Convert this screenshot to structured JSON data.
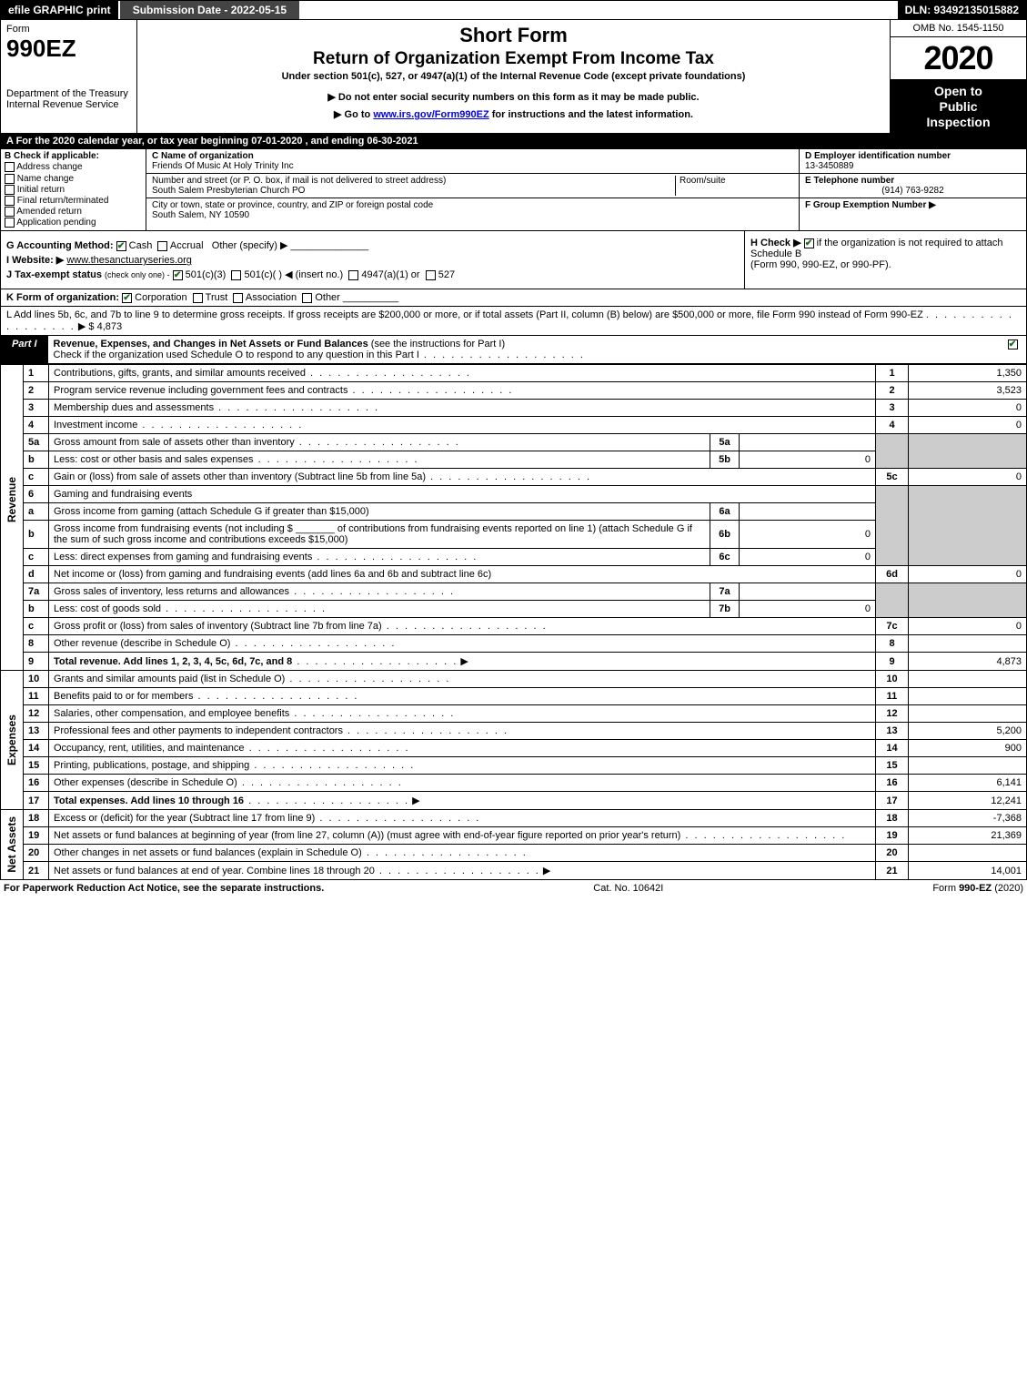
{
  "topbar": {
    "efile": "efile GRAPHIC print",
    "subdate": "Submission Date - 2022-05-15",
    "dln": "DLN: 93492135015882"
  },
  "header": {
    "form_word": "Form",
    "form_num": "990EZ",
    "dept1": "Department of the Treasury",
    "dept2": "Internal Revenue Service",
    "title": "Short Form",
    "subtitle": "Return of Organization Exempt From Income Tax",
    "section": "Under section 501(c), 527, or 4947(a)(1) of the Internal Revenue Code (except private foundations)",
    "warn": "▶ Do not enter social security numbers on this form as it may be made public.",
    "goto_pre": "▶ Go to ",
    "goto_link": "www.irs.gov/Form990EZ",
    "goto_post": " for instructions and the latest information.",
    "omb": "OMB No. 1545-1150",
    "year": "2020",
    "inspection1": "Open to",
    "inspection2": "Public",
    "inspection3": "Inspection"
  },
  "a_row": "A For the 2020 calendar year, or tax year beginning 07-01-2020 , and ending 06-30-2021",
  "b": {
    "label": "B Check if applicable:",
    "items": [
      "Address change",
      "Name change",
      "Initial return",
      "Final return/terminated",
      "Amended return",
      "Application pending"
    ]
  },
  "c": {
    "name_lbl": "C Name of organization",
    "name_val": "Friends Of Music At Holy Trinity Inc",
    "addr_lbl": "Number and street (or P. O. box, if mail is not delivered to street address)",
    "addr_val": "South Salem Presbyterian Church PO",
    "room_lbl": "Room/suite",
    "city_lbl": "City or town, state or province, country, and ZIP or foreign postal code",
    "city_val": "South Salem, NY 10590"
  },
  "d": {
    "ein_lbl": "D Employer identification number",
    "ein_val": "13-3450889",
    "tel_lbl": "E Telephone number",
    "tel_val": "(914) 763-9282",
    "grp_lbl": "F Group Exemption Number ▶"
  },
  "g": {
    "label": "G Accounting Method:",
    "cash": "Cash",
    "accrual": "Accrual",
    "other": "Other (specify) ▶"
  },
  "h": {
    "text": "H Check ▶",
    "text2": "if the organization is not required to attach Schedule B",
    "text3": "(Form 990, 990-EZ, or 990-PF)."
  },
  "i": {
    "label": "I Website: ▶",
    "val": "www.thesanctuaryseries.org"
  },
  "j": {
    "label": "J Tax-exempt status",
    "sub": "(check only one) -",
    "opt1": "501(c)(3)",
    "opt2": "501(c)(  ) ◀ (insert no.)",
    "opt3": "4947(a)(1) or",
    "opt4": "527"
  },
  "k": {
    "label": "K Form of organization:",
    "opts": [
      "Corporation",
      "Trust",
      "Association",
      "Other"
    ]
  },
  "l": {
    "text": "L Add lines 5b, 6c, and 7b to line 9 to determine gross receipts. If gross receipts are $200,000 or more, or if total assets (Part II, column (B) below) are $500,000 or more, file Form 990 instead of Form 990-EZ",
    "amount": "▶ $ 4,873"
  },
  "part1": {
    "label": "Part I",
    "title": "Revenue, Expenses, and Changes in Net Assets or Fund Balances",
    "inst": "(see the instructions for Part I)",
    "check_line": "Check if the organization used Schedule O to respond to any question in this Part I"
  },
  "sections": {
    "revenue": "Revenue",
    "expenses": "Expenses",
    "netassets": "Net Assets"
  },
  "rows": {
    "r1": {
      "n": "1",
      "d": "Contributions, gifts, grants, and similar amounts received",
      "cn": "1",
      "cv": "1,350"
    },
    "r2": {
      "n": "2",
      "d": "Program service revenue including government fees and contracts",
      "cn": "2",
      "cv": "3,523"
    },
    "r3": {
      "n": "3",
      "d": "Membership dues and assessments",
      "cn": "3",
      "cv": "0"
    },
    "r4": {
      "n": "4",
      "d": "Investment income",
      "cn": "4",
      "cv": "0"
    },
    "r5a": {
      "n": "5a",
      "d": "Gross amount from sale of assets other than inventory",
      "sn": "5a",
      "sv": ""
    },
    "r5b": {
      "n": "b",
      "d": "Less: cost or other basis and sales expenses",
      "sn": "5b",
      "sv": "0"
    },
    "r5c": {
      "n": "c",
      "d": "Gain or (loss) from sale of assets other than inventory (Subtract line 5b from line 5a)",
      "cn": "5c",
      "cv": "0"
    },
    "r6": {
      "n": "6",
      "d": "Gaming and fundraising events"
    },
    "r6a": {
      "n": "a",
      "d": "Gross income from gaming (attach Schedule G if greater than $15,000)",
      "sn": "6a",
      "sv": ""
    },
    "r6b": {
      "n": "b",
      "d1": "Gross income from fundraising events (not including $",
      "d2": "of contributions from fundraising events reported on line 1) (attach Schedule G if the sum of such gross income and contributions exceeds $15,000)",
      "sn": "6b",
      "sv": "0"
    },
    "r6c": {
      "n": "c",
      "d": "Less: direct expenses from gaming and fundraising events",
      "sn": "6c",
      "sv": "0"
    },
    "r6d": {
      "n": "d",
      "d": "Net income or (loss) from gaming and fundraising events (add lines 6a and 6b and subtract line 6c)",
      "cn": "6d",
      "cv": "0"
    },
    "r7a": {
      "n": "7a",
      "d": "Gross sales of inventory, less returns and allowances",
      "sn": "7a",
      "sv": ""
    },
    "r7b": {
      "n": "b",
      "d": "Less: cost of goods sold",
      "sn": "7b",
      "sv": "0"
    },
    "r7c": {
      "n": "c",
      "d": "Gross profit or (loss) from sales of inventory (Subtract line 7b from line 7a)",
      "cn": "7c",
      "cv": "0"
    },
    "r8": {
      "n": "8",
      "d": "Other revenue (describe in Schedule O)",
      "cn": "8",
      "cv": ""
    },
    "r9": {
      "n": "9",
      "d": "Total revenue. Add lines 1, 2, 3, 4, 5c, 6d, 7c, and 8",
      "cn": "9",
      "cv": "4,873"
    },
    "r10": {
      "n": "10",
      "d": "Grants and similar amounts paid (list in Schedule O)",
      "cn": "10",
      "cv": ""
    },
    "r11": {
      "n": "11",
      "d": "Benefits paid to or for members",
      "cn": "11",
      "cv": ""
    },
    "r12": {
      "n": "12",
      "d": "Salaries, other compensation, and employee benefits",
      "cn": "12",
      "cv": ""
    },
    "r13": {
      "n": "13",
      "d": "Professional fees and other payments to independent contractors",
      "cn": "13",
      "cv": "5,200"
    },
    "r14": {
      "n": "14",
      "d": "Occupancy, rent, utilities, and maintenance",
      "cn": "14",
      "cv": "900"
    },
    "r15": {
      "n": "15",
      "d": "Printing, publications, postage, and shipping",
      "cn": "15",
      "cv": ""
    },
    "r16": {
      "n": "16",
      "d": "Other expenses (describe in Schedule O)",
      "cn": "16",
      "cv": "6,141"
    },
    "r17": {
      "n": "17",
      "d": "Total expenses. Add lines 10 through 16",
      "cn": "17",
      "cv": "12,241"
    },
    "r18": {
      "n": "18",
      "d": "Excess or (deficit) for the year (Subtract line 17 from line 9)",
      "cn": "18",
      "cv": "-7,368"
    },
    "r19": {
      "n": "19",
      "d": "Net assets or fund balances at beginning of year (from line 27, column (A)) (must agree with end-of-year figure reported on prior year's return)",
      "cn": "19",
      "cv": "21,369"
    },
    "r20": {
      "n": "20",
      "d": "Other changes in net assets or fund balances (explain in Schedule O)",
      "cn": "20",
      "cv": ""
    },
    "r21": {
      "n": "21",
      "d": "Net assets or fund balances at end of year. Combine lines 18 through 20",
      "cn": "21",
      "cv": "14,001"
    }
  },
  "footer": {
    "left": "For Paperwork Reduction Act Notice, see the separate instructions.",
    "mid": "Cat. No. 10642I",
    "right_pre": "Form ",
    "right_bold": "990-EZ",
    "right_post": " (2020)"
  },
  "colors": {
    "black": "#000000",
    "white": "#ffffff",
    "shade": "#cccccc",
    "checkgreen": "#1b6b1b",
    "link": "#0018c8"
  }
}
